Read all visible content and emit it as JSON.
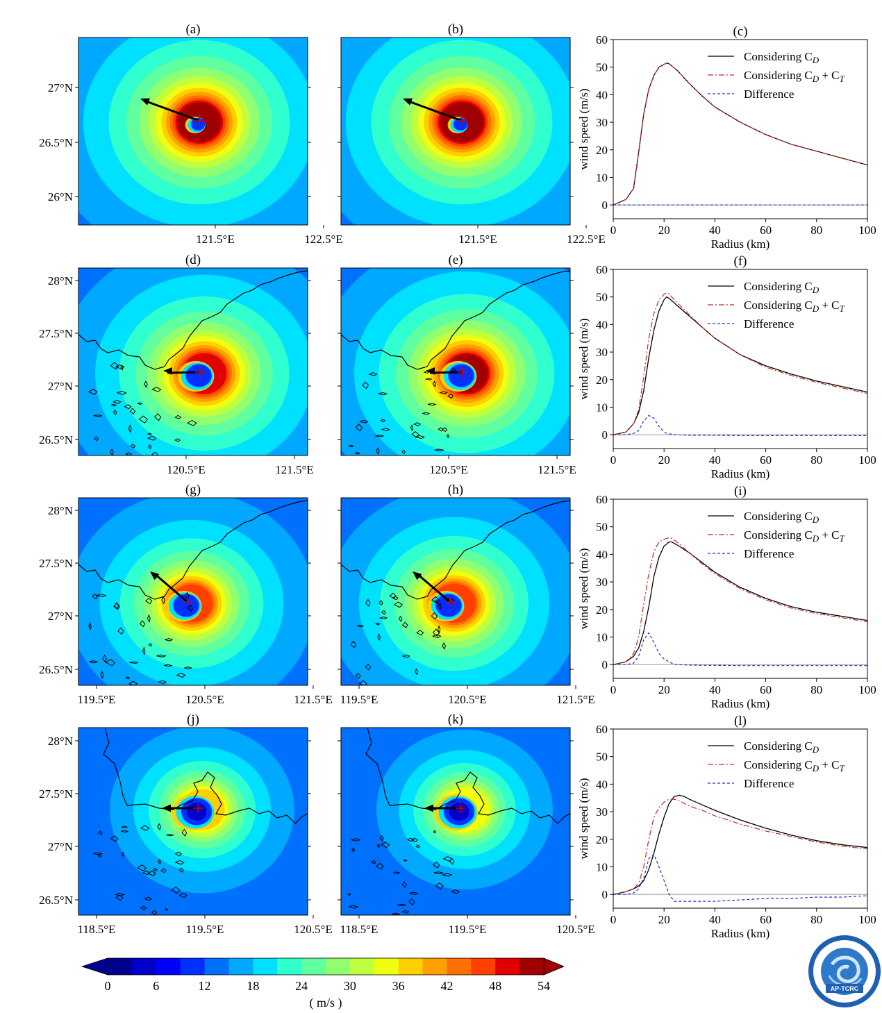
{
  "figure": {
    "colorbar": {
      "ticks": [
        "0",
        "6",
        "12",
        "18",
        "24",
        "30",
        "36",
        "42",
        "48",
        "54"
      ],
      "unit_label": "( m/s )",
      "colors": [
        "#00008f",
        "#0000c8",
        "#0000ff",
        "#0030ff",
        "#0070ff",
        "#00a8ff",
        "#00e0ff",
        "#30ffd0",
        "#60ffa0",
        "#90ff70",
        "#c0ff40",
        "#f0ff10",
        "#ffd000",
        "#ffa000",
        "#ff7000",
        "#ff4000",
        "#e00000",
        "#a00000"
      ]
    },
    "maps": [
      {
        "id": "a",
        "label": "(a)",
        "lat_ticks": [
          "27°N",
          "26.5°N",
          "26°N"
        ],
        "lon_ticks": [
          "121.5°E",
          "122.5°E"
        ],
        "vmax": 52,
        "eye": "dense",
        "coast": false
      },
      {
        "id": "b",
        "label": "(b)",
        "lat_ticks": [],
        "lon_ticks": [
          "121.5°E",
          "122.5°E"
        ],
        "vmax": 52,
        "eye": "dense",
        "coast": false
      },
      {
        "id": "d",
        "label": "(d)",
        "lat_ticks": [
          "28°N",
          "27.5°N",
          "27°N",
          "26.5°N"
        ],
        "lon_ticks": [
          "120.5°E",
          "121.5°E"
        ],
        "vmax": 50,
        "eye": "large",
        "coast": true
      },
      {
        "id": "e",
        "label": "(e)",
        "lat_ticks": [],
        "lon_ticks": [
          "120.5°E",
          "121.5°E"
        ],
        "vmax": 51,
        "eye": "large",
        "coast": true
      },
      {
        "id": "g",
        "label": "(g)",
        "lat_ticks": [
          "28°N",
          "27.5°N",
          "27°N",
          "26.5°N"
        ],
        "lon_ticks": [
          "119.5°E",
          "120.5°E",
          "121.5°E"
        ],
        "vmax": 45,
        "eye": "large",
        "coast": true
      },
      {
        "id": "h",
        "label": "(h)",
        "lat_ticks": [],
        "lon_ticks": [
          "119.5°E",
          "120.5°E",
          "121.5°E"
        ],
        "vmax": 46,
        "eye": "large",
        "coast": true
      },
      {
        "id": "j",
        "label": "(j)",
        "lat_ticks": [
          "28°N",
          "27.5°N",
          "27°N",
          "26.5°N"
        ],
        "lon_ticks": [
          "118.5°E",
          "119.5°E",
          "120.5°E"
        ],
        "vmax": 36,
        "eye": "landfall",
        "coast": true
      },
      {
        "id": "k",
        "label": "(k)",
        "lat_ticks": [],
        "lon_ticks": [
          "118.5°E",
          "119.5°E",
          "120.5°E"
        ],
        "vmax": 35,
        "eye": "landfall",
        "coast": true
      }
    ],
    "legend": [
      "Considering C",
      "Considering C",
      "Difference"
    ],
    "legend_sub": {
      "D": "D",
      "T": "T",
      "plus": " + C"
    }
  },
  "chart_data": [
    {
      "type": "line",
      "title": "(c)",
      "xlabel": "Radius (km)",
      "ylabel": "wind speed (m/s)",
      "xlim": [
        0,
        100
      ],
      "ylim": [
        -5,
        60
      ],
      "xticks": [
        "0",
        "20",
        "40",
        "60",
        "80",
        "100"
      ],
      "yticks": [
        "0",
        "10",
        "20",
        "30",
        "40",
        "50",
        "60"
      ],
      "x": [
        0,
        5,
        8,
        10,
        12,
        14,
        16,
        18,
        20,
        21,
        22,
        25,
        30,
        35,
        40,
        50,
        60,
        70,
        80,
        90,
        100
      ],
      "series": [
        {
          "name": "Considering C_D",
          "values": [
            0,
            2,
            6,
            19,
            33,
            42,
            47,
            50,
            51,
            51.5,
            51.2,
            49,
            44,
            39.5,
            35.5,
            30,
            25.5,
            22,
            19.5,
            17,
            14.5
          ]
        },
        {
          "name": "Considering C_D + C_T",
          "values": [
            0,
            2,
            6,
            19,
            33,
            42,
            47,
            50,
            51,
            51.5,
            51.2,
            49,
            44,
            39.5,
            35.5,
            30,
            25.5,
            22,
            19.5,
            17,
            14.5
          ]
        },
        {
          "name": "Difference",
          "values": [
            0,
            0,
            0,
            0,
            0,
            0,
            0,
            0,
            0,
            0,
            0,
            0,
            0,
            0,
            0,
            0,
            0,
            0,
            0,
            0,
            0
          ]
        }
      ]
    },
    {
      "type": "line",
      "title": "(f)",
      "xlabel": "Radius (km)",
      "ylabel": "wind speed (m/s)",
      "xlim": [
        0,
        100
      ],
      "ylim": [
        -5,
        60
      ],
      "xticks": [
        "0",
        "20",
        "40",
        "60",
        "80",
        "100"
      ],
      "yticks": [
        "0",
        "10",
        "20",
        "30",
        "40",
        "50",
        "60"
      ],
      "x": [
        0,
        5,
        8,
        10,
        12,
        14,
        16,
        18,
        20,
        21,
        22,
        25,
        30,
        35,
        40,
        50,
        60,
        70,
        80,
        90,
        100
      ],
      "series": [
        {
          "name": "Considering C_D",
          "values": [
            0,
            1,
            4,
            8,
            16,
            28,
            38,
            45,
            49,
            50,
            49.5,
            47,
            43,
            39,
            35,
            29,
            25,
            22,
            19.5,
            17.5,
            15.5
          ]
        },
        {
          "name": "Considering C_D + C_T",
          "values": [
            0,
            1,
            4,
            9,
            21,
            35,
            44,
            49,
            51,
            51.5,
            51,
            48,
            43.5,
            39,
            35,
            29,
            24.5,
            21.5,
            19,
            17,
            15
          ]
        },
        {
          "name": "Difference",
          "values": [
            0,
            0,
            0.5,
            1.5,
            5,
            7,
            6,
            3,
            1,
            0.5,
            0.3,
            0,
            -0.2,
            -0.2,
            -0.2,
            -0.3,
            -0.3,
            -0.3,
            -0.3,
            -0.3,
            -0.3
          ]
        }
      ]
    },
    {
      "type": "line",
      "title": "(i)",
      "xlabel": "Radius (km)",
      "ylabel": "wind speed (m/s)",
      "xlim": [
        0,
        100
      ],
      "ylim": [
        -5,
        60
      ],
      "xticks": [
        "0",
        "20",
        "40",
        "60",
        "80",
        "100"
      ],
      "yticks": [
        "0",
        "10",
        "20",
        "30",
        "40",
        "50",
        "60"
      ],
      "x": [
        0,
        5,
        8,
        10,
        12,
        14,
        16,
        18,
        20,
        22,
        23,
        25,
        30,
        35,
        40,
        50,
        60,
        70,
        80,
        90,
        100
      ],
      "series": [
        {
          "name": "Considering C_D",
          "values": [
            0,
            1,
            3,
            6,
            12,
            21,
            32,
            39,
            43,
            44.5,
            44.5,
            43.5,
            40.5,
            37,
            33.5,
            28,
            24,
            21,
            19,
            17.5,
            16
          ]
        },
        {
          "name": "Considering C_D + C_T",
          "values": [
            0,
            1,
            4,
            10,
            22,
            33,
            41,
            44.5,
            45.5,
            46,
            45.8,
            44.5,
            40.5,
            36.5,
            33,
            27.5,
            23.5,
            20.5,
            18.5,
            17,
            15.5
          ]
        },
        {
          "name": "Difference",
          "values": [
            0,
            0,
            0.5,
            3,
            9,
            11.5,
            8,
            4,
            2,
            1,
            0.5,
            0,
            -0.2,
            -0.3,
            -0.3,
            -0.4,
            -0.4,
            -0.4,
            -0.4,
            -0.4,
            -0.4
          ]
        }
      ]
    },
    {
      "type": "line",
      "title": "(l)",
      "xlabel": "Radius (km)",
      "ylabel": "wind speed (m/s)",
      "xlim": [
        0,
        100
      ],
      "ylim": [
        -5,
        60
      ],
      "xticks": [
        "0",
        "20",
        "40",
        "60",
        "80",
        "100"
      ],
      "yticks": [
        "0",
        "10",
        "20",
        "30",
        "40",
        "50",
        "60"
      ],
      "x": [
        0,
        5,
        8,
        10,
        12,
        14,
        16,
        18,
        20,
        22,
        24,
        26,
        28,
        30,
        35,
        40,
        50,
        60,
        70,
        80,
        90,
        100
      ],
      "series": [
        {
          "name": "Considering C_D",
          "values": [
            0,
            1,
            2,
            3,
            5,
            9,
            15,
            22,
            28,
            33,
            35.5,
            36,
            35.5,
            34.5,
            32.5,
            30.5,
            27,
            24,
            21.5,
            19.5,
            18,
            17
          ]
        },
        {
          "name": "Considering C_D + C_T",
          "values": [
            0,
            1,
            2,
            4,
            10,
            20,
            28,
            31.5,
            33.5,
            34.5,
            34.5,
            34,
            33,
            32,
            30.5,
            28.5,
            25.5,
            23,
            21,
            19,
            17.5,
            16.5
          ]
        },
        {
          "name": "Difference",
          "values": [
            0,
            0,
            0.5,
            2,
            6,
            13,
            14.5,
            10,
            5,
            0,
            -2.5,
            -2.5,
            -2.5,
            -2.5,
            -2.5,
            -2.5,
            -2,
            -1.5,
            -1.5,
            -1,
            -1,
            -0.5
          ]
        }
      ]
    }
  ]
}
